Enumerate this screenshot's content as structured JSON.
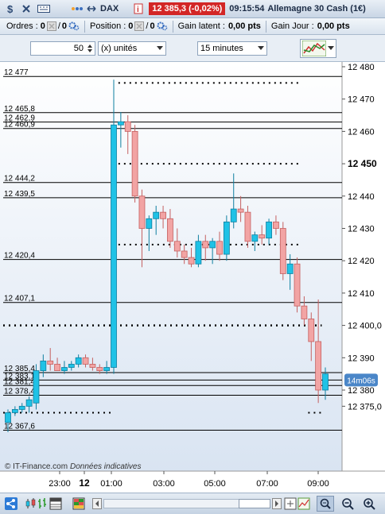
{
  "topbar": {
    "instrument": "DAX",
    "price_badge": "12 385,3 (-0,02%)",
    "time": "09:15:54",
    "instrument_name": "Allemagne 30 Cash (1€)"
  },
  "status": {
    "orders_label": "Ordres :",
    "orders_value": "0",
    "orders_value2": "0",
    "position_label": "Position :",
    "position_value": "0",
    "position_value2": "0",
    "gain_latent_label": "Gain latent :",
    "gain_latent_value": "0,00 pts",
    "gain_jour_label": "Gain Jour :",
    "gain_jour_value": "0,00 pts"
  },
  "controls": {
    "quantity": "50",
    "unit": "(x) unités",
    "timeframe": "15 minutes"
  },
  "chart": {
    "watermark": "© IT-Finance.com",
    "watermark_note": "Données indicatives",
    "countdown": "14m06s",
    "x_labels": [
      {
        "t": "23:00",
        "bold": false
      },
      {
        "t": "12",
        "bold": true
      },
      {
        "t": "01:00",
        "bold": false
      },
      {
        "t": "03:00",
        "bold": false
      },
      {
        "t": "05:00",
        "bold": false
      },
      {
        "t": "07:00",
        "bold": false
      },
      {
        "t": "09:00",
        "bold": false
      }
    ],
    "y_labels": [
      {
        "t": "12 480",
        "v": 12480,
        "bold": false
      },
      {
        "t": "12 470",
        "v": 12470,
        "bold": false
      },
      {
        "t": "12 460",
        "v": 12460,
        "bold": false
      },
      {
        "t": "12 450",
        "v": 12450,
        "bold": true
      },
      {
        "t": "12 440",
        "v": 12440,
        "bold": false
      },
      {
        "t": "12 430",
        "v": 12430,
        "bold": false
      },
      {
        "t": "12 420",
        "v": 12420,
        "bold": false
      },
      {
        "t": "12 410",
        "v": 12410,
        "bold": false
      },
      {
        "t": "12 400,0",
        "v": 12400,
        "bold": false
      },
      {
        "t": "12 390",
        "v": 12390,
        "bold": false
      },
      {
        "t": "12 380",
        "v": 12380,
        "bold": false
      },
      {
        "t": "12 375,0",
        "v": 12375,
        "bold": false
      }
    ],
    "levels": [
      {
        "t": "12 477",
        "v": 12477
      },
      {
        "t": "12 465,8",
        "v": 12465.8
      },
      {
        "t": "12 462,9",
        "v": 12462.9
      },
      {
        "t": "12 460,9",
        "v": 12460.9
      },
      {
        "t": "12 444,2",
        "v": 12444.2
      },
      {
        "t": "12 439,5",
        "v": 12439.5
      },
      {
        "t": "12 420,4",
        "v": 12420.4
      },
      {
        "t": "12 407,1",
        "v": 12407.1
      },
      {
        "t": "12 385,4",
        "v": 12385.4
      },
      {
        "t": "12 383,1",
        "v": 12383.1
      },
      {
        "t": "12 381,4",
        "v": 12381.4
      },
      {
        "t": "12 378,4",
        "v": 12378.4
      },
      {
        "t": "12 367,6",
        "v": 12367.6
      }
    ],
    "dotted_levels": [
      {
        "v": 12475,
        "from": 0.34,
        "to": 0.88
      },
      {
        "v": 12450,
        "from": 0.34,
        "to": 0.88
      },
      {
        "v": 12425,
        "from": 0.34,
        "to": 0.88
      },
      {
        "v": 12400,
        "from": 0.0,
        "to": 0.94
      },
      {
        "v": 12373,
        "from": 0.0,
        "to": 0.32
      },
      {
        "v": 12373,
        "from": 0.9,
        "to": 0.94
      }
    ],
    "candles": [
      {
        "o": 12370,
        "h": 12374,
        "l": 12367,
        "c": 12373,
        "d": "up"
      },
      {
        "o": 12373,
        "h": 12375,
        "l": 12372,
        "c": 12374,
        "d": "up"
      },
      {
        "o": 12374,
        "h": 12376,
        "l": 12373,
        "c": 12375,
        "d": "up"
      },
      {
        "o": 12375,
        "h": 12378,
        "l": 12373,
        "c": 12377,
        "d": "up"
      },
      {
        "o": 12376,
        "h": 12388,
        "l": 12374,
        "c": 12386,
        "d": "up"
      },
      {
        "o": 12386,
        "h": 12391,
        "l": 12384,
        "c": 12389,
        "d": "up"
      },
      {
        "o": 12389,
        "h": 12393,
        "l": 12386,
        "c": 12388,
        "d": "down"
      },
      {
        "o": 12388,
        "h": 12390,
        "l": 12386,
        "c": 12386,
        "d": "down"
      },
      {
        "o": 12386,
        "h": 12389,
        "l": 12385,
        "c": 12387,
        "d": "up"
      },
      {
        "o": 12387,
        "h": 12389,
        "l": 12386,
        "c": 12388,
        "d": "up"
      },
      {
        "o": 12388,
        "h": 12391,
        "l": 12387,
        "c": 12390,
        "d": "up"
      },
      {
        "o": 12390,
        "h": 12391,
        "l": 12387,
        "c": 12388,
        "d": "down"
      },
      {
        "o": 12388,
        "h": 12390,
        "l": 12386,
        "c": 12387,
        "d": "down"
      },
      {
        "o": 12387,
        "h": 12388,
        "l": 12385,
        "c": 12386,
        "d": "down"
      },
      {
        "o": 12386,
        "h": 12389,
        "l": 12385,
        "c": 12387,
        "d": "up"
      },
      {
        "o": 12387,
        "h": 12476,
        "l": 12385,
        "c": 12462,
        "d": "up"
      },
      {
        "o": 12462,
        "h": 12466,
        "l": 12455,
        "c": 12463,
        "d": "up"
      },
      {
        "o": 12463,
        "h": 12465,
        "l": 12453,
        "c": 12460,
        "d": "down"
      },
      {
        "o": 12460,
        "h": 12462,
        "l": 12438,
        "c": 12440,
        "d": "down"
      },
      {
        "o": 12440,
        "h": 12442,
        "l": 12418,
        "c": 12430,
        "d": "down"
      },
      {
        "o": 12430,
        "h": 12434,
        "l": 12423,
        "c": 12433,
        "d": "up"
      },
      {
        "o": 12433,
        "h": 12437,
        "l": 12428,
        "c": 12435,
        "d": "up"
      },
      {
        "o": 12435,
        "h": 12437,
        "l": 12430,
        "c": 12433,
        "d": "down"
      },
      {
        "o": 12433,
        "h": 12436,
        "l": 12424,
        "c": 12426,
        "d": "down"
      },
      {
        "o": 12426,
        "h": 12430,
        "l": 12421,
        "c": 12423,
        "d": "down"
      },
      {
        "o": 12423,
        "h": 12425,
        "l": 12419,
        "c": 12421,
        "d": "down"
      },
      {
        "o": 12421,
        "h": 12424,
        "l": 12418,
        "c": 12419,
        "d": "down"
      },
      {
        "o": 12419,
        "h": 12428,
        "l": 12418,
        "c": 12426,
        "d": "up"
      },
      {
        "o": 12426,
        "h": 12428,
        "l": 12420,
        "c": 12424,
        "d": "down"
      },
      {
        "o": 12424,
        "h": 12427,
        "l": 12419,
        "c": 12426,
        "d": "up"
      },
      {
        "o": 12426,
        "h": 12429,
        "l": 12420,
        "c": 12422,
        "d": "down"
      },
      {
        "o": 12422,
        "h": 12434,
        "l": 12420,
        "c": 12432,
        "d": "up"
      },
      {
        "o": 12432,
        "h": 12447,
        "l": 12430,
        "c": 12436,
        "d": "up"
      },
      {
        "o": 12436,
        "h": 12440,
        "l": 12432,
        "c": 12435,
        "d": "down"
      },
      {
        "o": 12435,
        "h": 12437,
        "l": 12424,
        "c": 12426,
        "d": "down"
      },
      {
        "o": 12426,
        "h": 12429,
        "l": 12423,
        "c": 12428,
        "d": "up"
      },
      {
        "o": 12428,
        "h": 12431,
        "l": 12425,
        "c": 12427,
        "d": "down"
      },
      {
        "o": 12427,
        "h": 12433,
        "l": 12425,
        "c": 12432,
        "d": "up"
      },
      {
        "o": 12432,
        "h": 12434,
        "l": 12428,
        "c": 12430,
        "d": "down"
      },
      {
        "o": 12430,
        "h": 12432,
        "l": 12414,
        "c": 12416,
        "d": "down"
      },
      {
        "o": 12416,
        "h": 12422,
        "l": 12411,
        "c": 12419,
        "d": "up"
      },
      {
        "o": 12419,
        "h": 12421,
        "l": 12404,
        "c": 12406,
        "d": "down"
      },
      {
        "o": 12406,
        "h": 12409,
        "l": 12400,
        "c": 12402,
        "d": "down"
      },
      {
        "o": 12402,
        "h": 12404,
        "l": 12389,
        "c": 12395,
        "d": "down"
      },
      {
        "o": 12395,
        "h": 12408,
        "l": 12376,
        "c": 12380,
        "d": "down"
      },
      {
        "o": 12380,
        "h": 12387,
        "l": 12377,
        "c": 12385,
        "d": "up"
      }
    ]
  },
  "colors": {
    "up": "#1fc2e6",
    "down": "#f2a4a4",
    "down_border": "#c56060",
    "level_line": "#000000",
    "countdown_bg": "#4a86c8"
  },
  "icons": {
    "share": "share-icon",
    "zoom": "zoom-icon",
    "zoom_in": "zoom-in-icon",
    "zoom_out": "zoom-out-icon"
  }
}
